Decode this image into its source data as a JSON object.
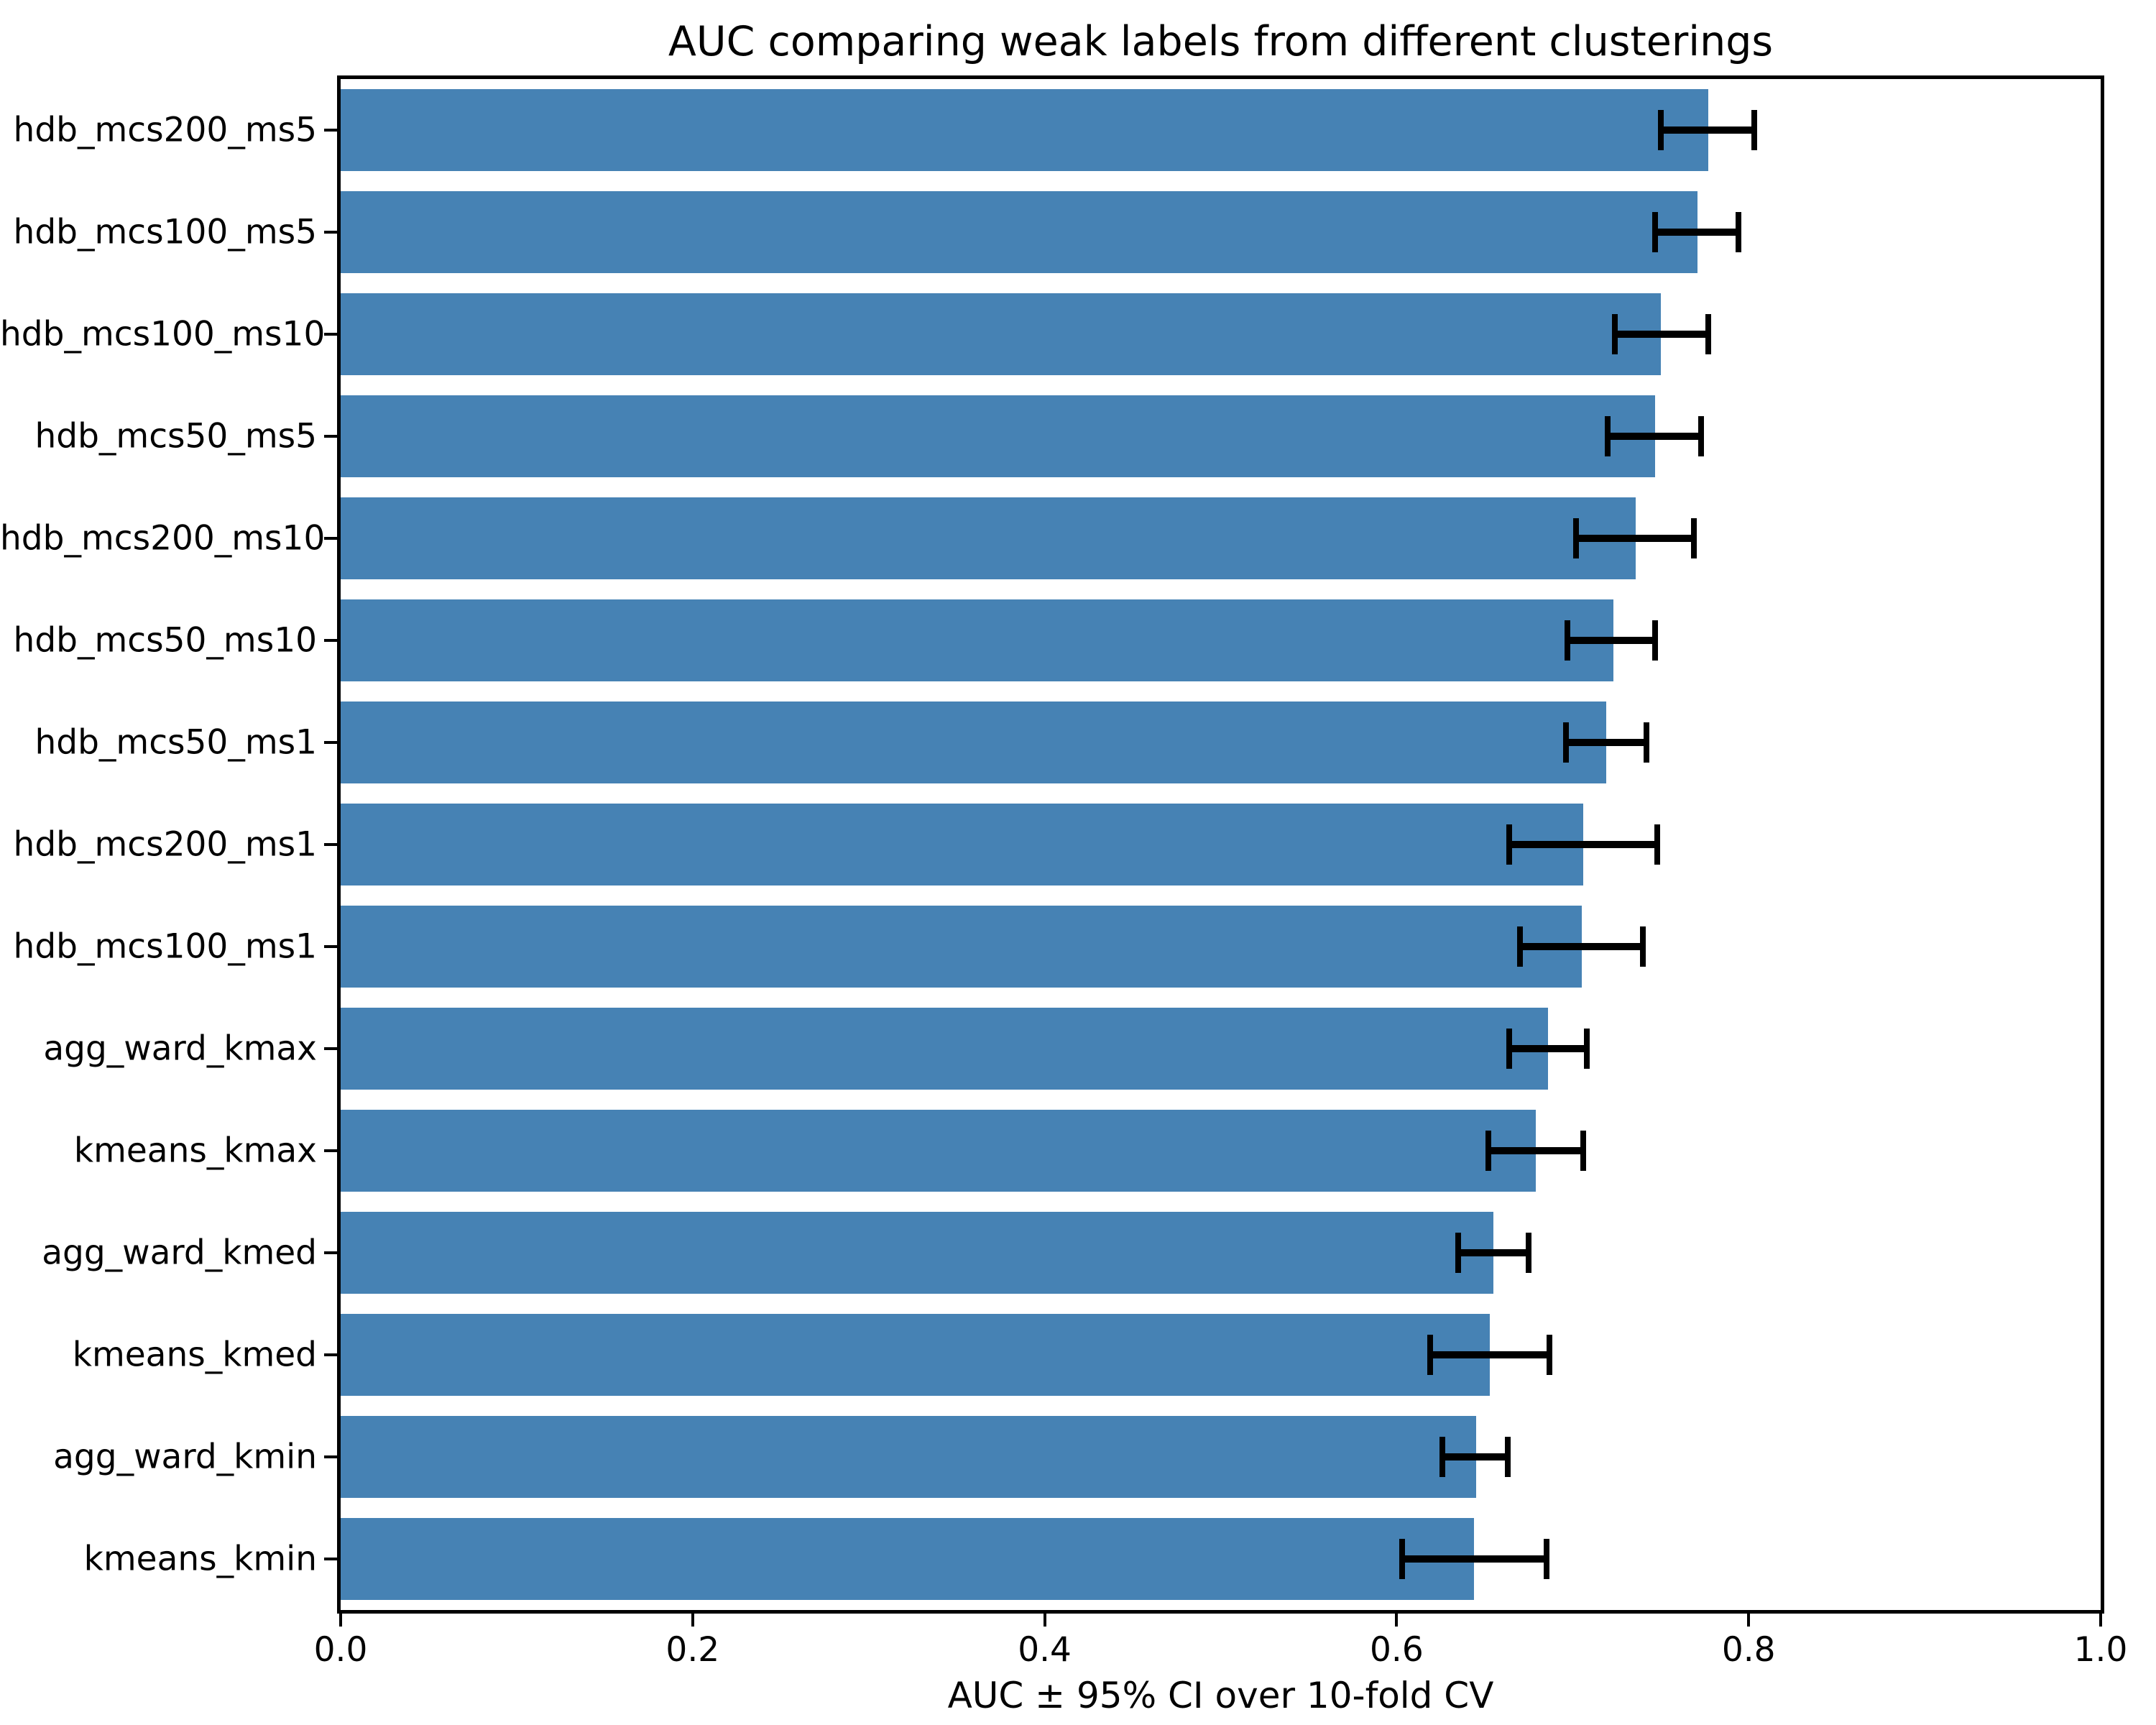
{
  "chart_data": {
    "type": "bar",
    "orientation": "horizontal",
    "title": "AUC comparing weak labels from different clusterings",
    "xlabel": "AUC ± 95% CI over 10-fold CV",
    "ylabel": "",
    "xlim": [
      0.0,
      1.0
    ],
    "xticks": [
      0.0,
      0.2,
      0.4,
      0.6,
      0.8,
      1.0
    ],
    "xtick_labels": [
      "0.0",
      "0.2",
      "0.4",
      "0.6",
      "0.8",
      "1.0"
    ],
    "grid": false,
    "legend": "none",
    "bar_color": "#4682b4",
    "error_bar_color": "#000000",
    "categories": [
      "hdb_mcs200_ms5",
      "hdb_mcs100_ms5",
      "hdb_mcs100_ms10",
      "hdb_mcs50_ms5",
      "hdb_mcs200_ms10",
      "hdb_mcs50_ms10",
      "hdb_mcs50_ms1",
      "hdb_mcs200_ms1",
      "hdb_mcs100_ms1",
      "agg_ward_kmax",
      "kmeans_kmax",
      "agg_ward_kmed",
      "kmeans_kmed",
      "agg_ward_kmin",
      "kmeans_kmin"
    ],
    "series": [
      {
        "name": "AUC",
        "values": [
          0.777,
          0.771,
          0.75,
          0.747,
          0.736,
          0.723,
          0.719,
          0.706,
          0.705,
          0.686,
          0.679,
          0.655,
          0.653,
          0.645,
          0.644
        ]
      }
    ],
    "ci_low": [
      0.75,
      0.747,
      0.724,
      0.72,
      0.702,
      0.697,
      0.696,
      0.664,
      0.67,
      0.664,
      0.652,
      0.635,
      0.619,
      0.626,
      0.603
    ],
    "ci_high": [
      0.803,
      0.794,
      0.777,
      0.773,
      0.769,
      0.747,
      0.742,
      0.748,
      0.74,
      0.708,
      0.706,
      0.675,
      0.687,
      0.663,
      0.685
    ]
  }
}
